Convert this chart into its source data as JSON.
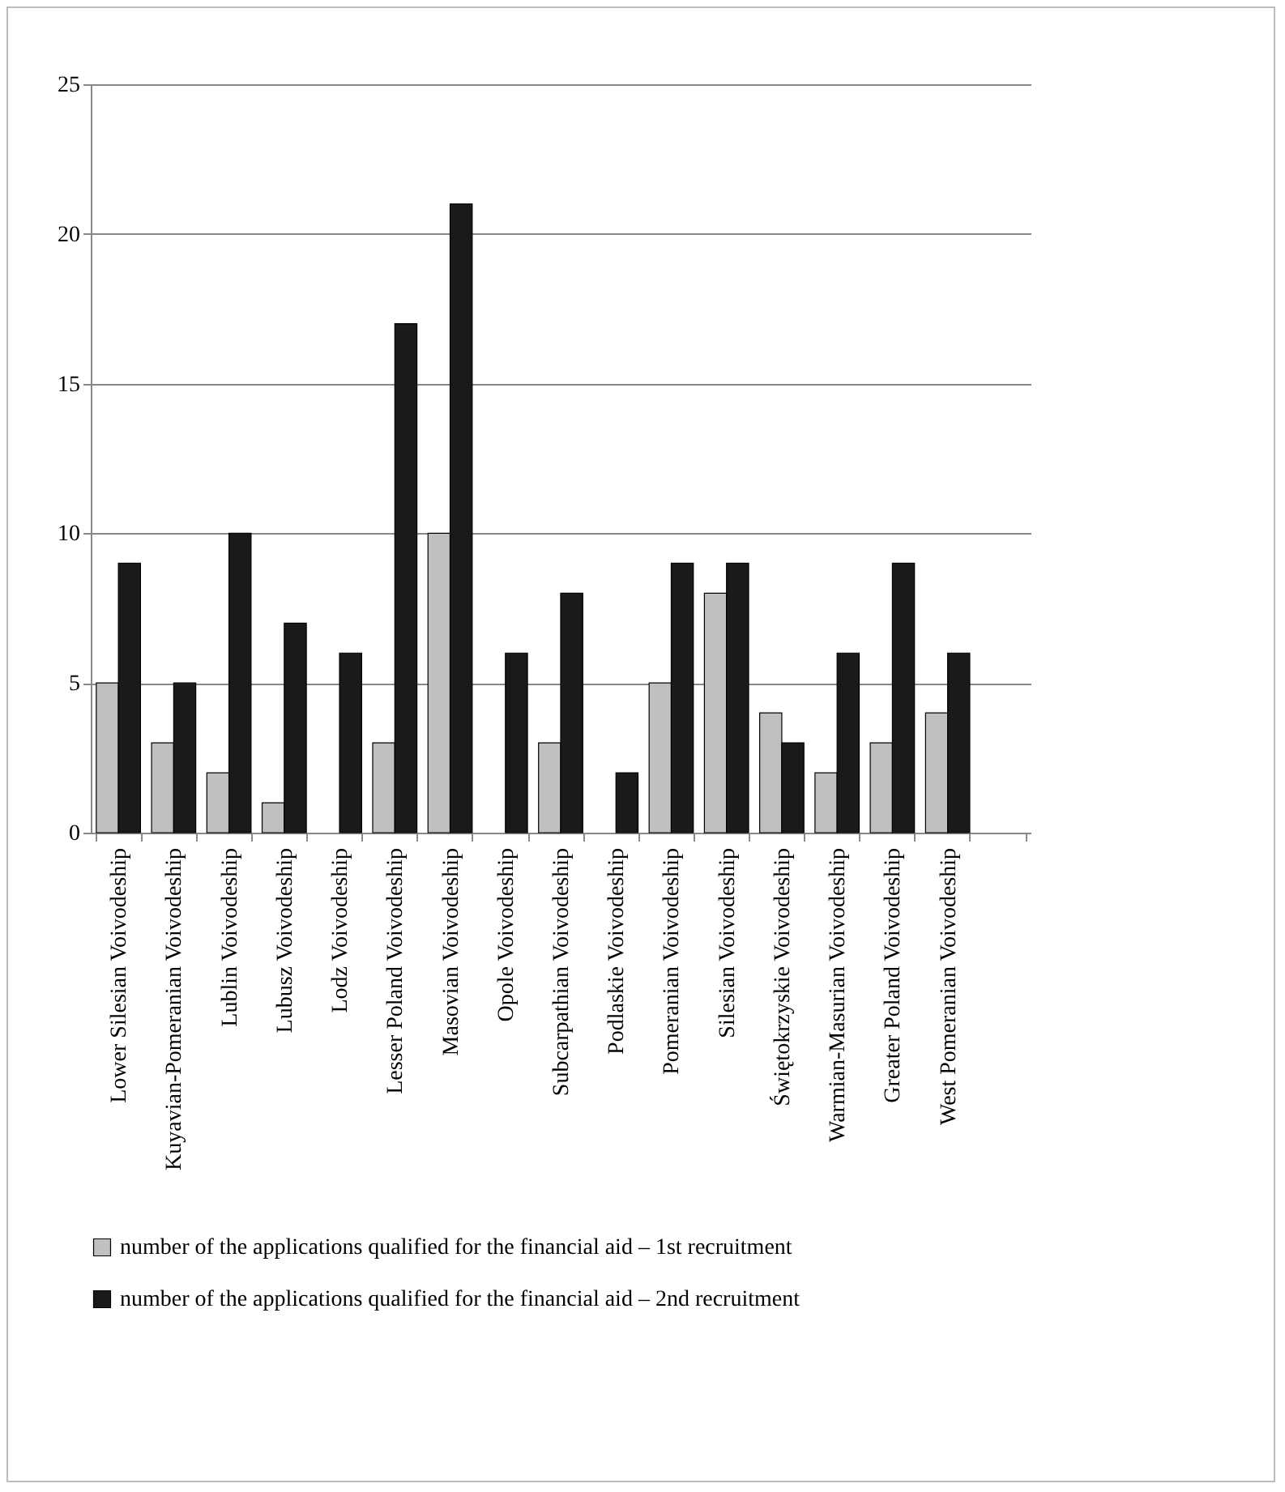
{
  "chart_data": {
    "type": "bar",
    "categories": [
      "Lower Silesian Voivodeship",
      "Kuyavian-Pomeranian Voivodeship",
      "Lublin Voivodeship",
      "Lubusz Voivodeship",
      "Lodz Voivodeship",
      "Lesser Poland Voivodeship",
      "Masovian Voivodeship",
      "Opole Voivodeship",
      "Subcarpathian Voivodeship",
      "Podlaskie Voivodeship",
      "Pomeranian Voivodeship",
      "Silesian Voivodeship",
      "Świętokrzyskie Voivodeship",
      "Warmian-Masurian Voivodeship",
      "Greater Poland Voivodeship",
      "West Pomeranian Voivodeship",
      null
    ],
    "series": [
      {
        "name": "number of the applications qualified for the financial aid – 1st recruitment",
        "color": "#c0c0c0",
        "values": [
          5,
          3,
          2,
          1,
          0,
          3,
          10,
          0,
          3,
          0,
          5,
          8,
          4,
          2,
          3,
          4,
          null
        ]
      },
      {
        "name": "number of the applications qualified for the financial aid – 2nd recruitment",
        "color": "#1a1a1a",
        "values": [
          9,
          5,
          10,
          7,
          6,
          17,
          21,
          6,
          8,
          2,
          9,
          9,
          3,
          6,
          9,
          6,
          null
        ]
      }
    ],
    "ylim": [
      0,
      25
    ],
    "yticks": [
      0,
      5,
      10,
      15,
      20,
      25
    ],
    "grid": "y",
    "legend": "bottom"
  }
}
